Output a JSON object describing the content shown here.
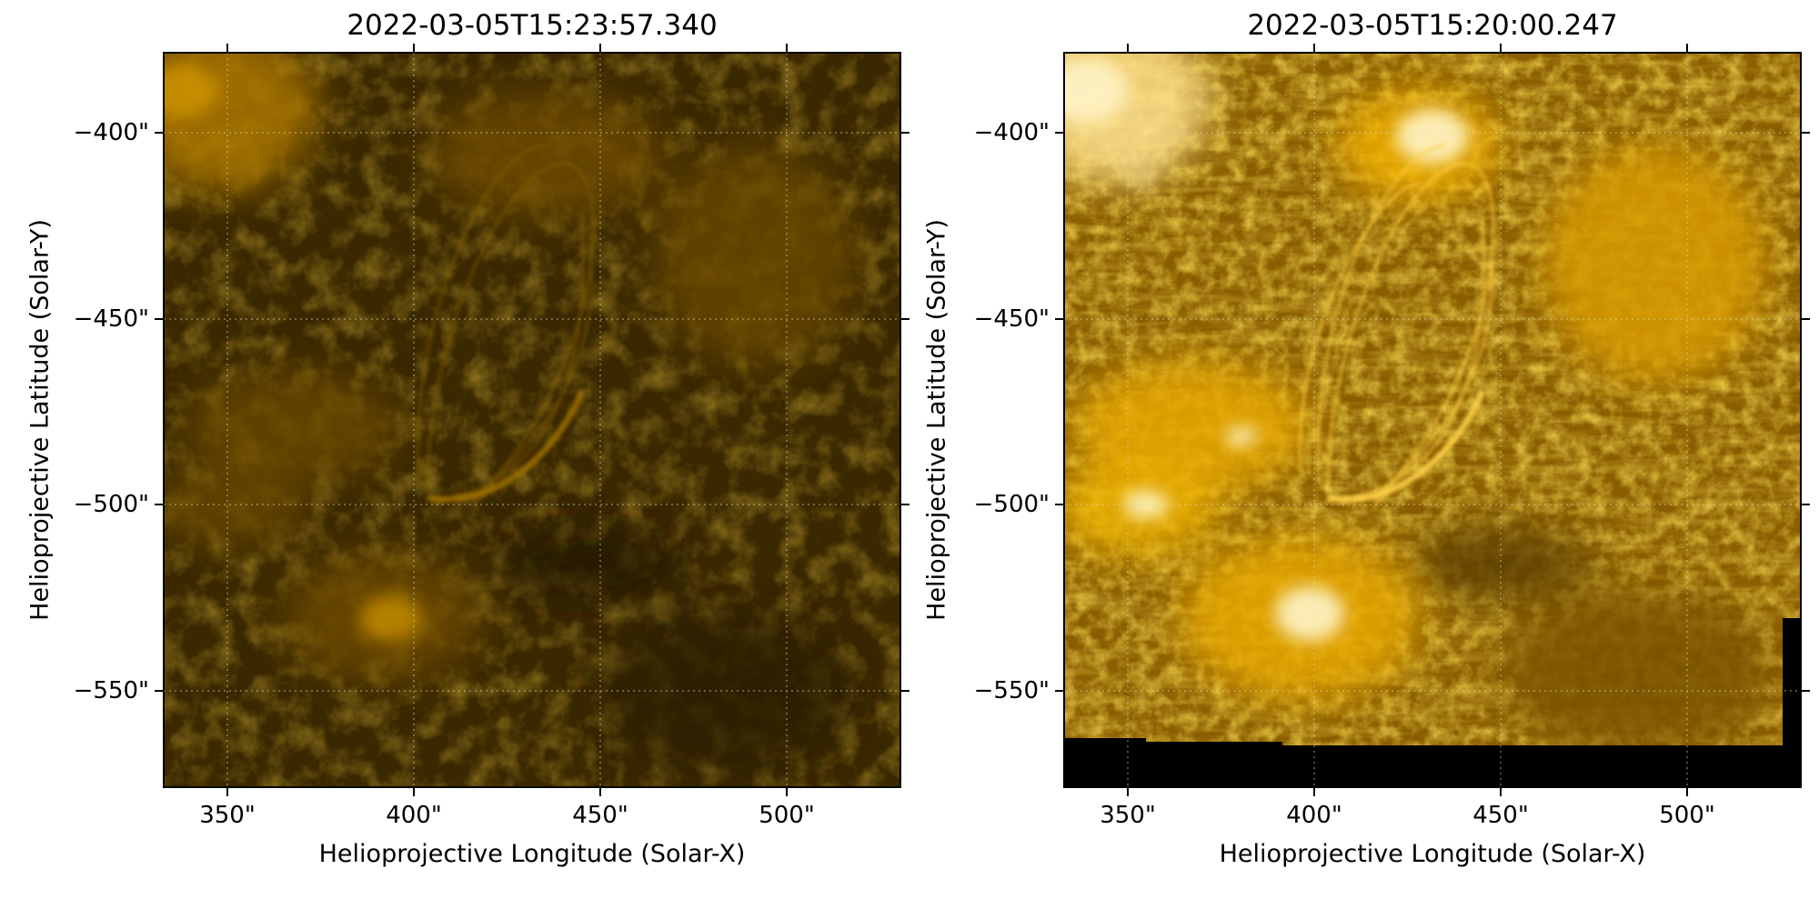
{
  "panels": [
    {
      "title": "2022-03-05T15:23:57.340",
      "xlabel": "Helioprojective Longitude (Solar-X)",
      "ylabel": "Helioprojective Latitude (Solar-Y)",
      "x_ticks": [
        "350\"",
        "400\"",
        "450\"",
        "500\""
      ],
      "y_ticks": [
        "−400\"",
        "−450\"",
        "−500\"",
        "−550\""
      ],
      "x_tick_values": [
        350,
        400,
        450,
        500
      ],
      "y_tick_values": [
        -400,
        -450,
        -500,
        -550
      ],
      "xlim": [
        333,
        530
      ],
      "ylim": [
        -578,
        -381
      ],
      "brightness": "dim",
      "colormap": "sdo-aia-171 (gold)",
      "grid": true
    },
    {
      "title": "2022-03-05T15:20:00.247",
      "xlabel": "Helioprojective Longitude (Solar-X)",
      "ylabel": "Helioprojective Latitude (Solar-Y)",
      "x_ticks": [
        "350\"",
        "400\"",
        "450\"",
        "500\""
      ],
      "y_ticks": [
        "−400\"",
        "−450\"",
        "−500\"",
        "−550\""
      ],
      "x_tick_values": [
        350,
        400,
        450,
        500
      ],
      "y_tick_values": [
        -400,
        -450,
        -500,
        -550
      ],
      "xlim": [
        333,
        530
      ],
      "ylim": [
        -578,
        -381
      ],
      "brightness": "bright",
      "colormap": "sdo-aia-171 (gold)",
      "grid": true,
      "missing_data_region": "black band along bottom edge"
    }
  ],
  "colors": {
    "dim_base": "#3a2800",
    "bright_base": "#b57d00",
    "highlight": "#fff0b0",
    "grid": "#d8d8b0",
    "missing": "#000000"
  }
}
